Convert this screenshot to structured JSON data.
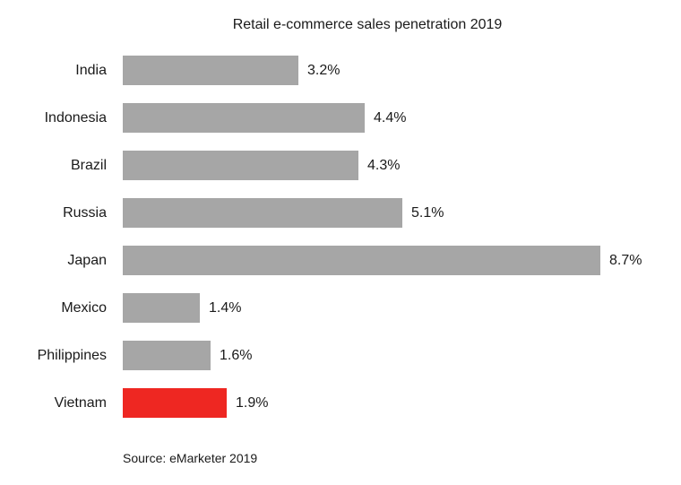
{
  "chart_data": {
    "type": "bar",
    "orientation": "horizontal",
    "title": "Retail e-commerce sales penetration 2019",
    "source": "Source: eMarketer 2019",
    "categories": [
      "India",
      "Indonesia",
      "Brazil",
      "Russia",
      "Japan",
      "Mexico",
      "Philippines",
      "Vietnam"
    ],
    "values": [
      3.2,
      4.4,
      4.3,
      5.1,
      8.7,
      1.4,
      1.6,
      1.9
    ],
    "value_labels": [
      "3.2%",
      "4.4%",
      "4.3%",
      "5.1%",
      "8.7%",
      "1.4%",
      "1.6%",
      "1.9%"
    ],
    "unit": "%",
    "xlim": [
      0,
      8.7
    ],
    "grid": false,
    "legend": false,
    "bar_color": "#a6a6a6",
    "highlight_category": "Vietnam",
    "highlight_color": "#ee2722",
    "xlabel": "",
    "ylabel": ""
  }
}
